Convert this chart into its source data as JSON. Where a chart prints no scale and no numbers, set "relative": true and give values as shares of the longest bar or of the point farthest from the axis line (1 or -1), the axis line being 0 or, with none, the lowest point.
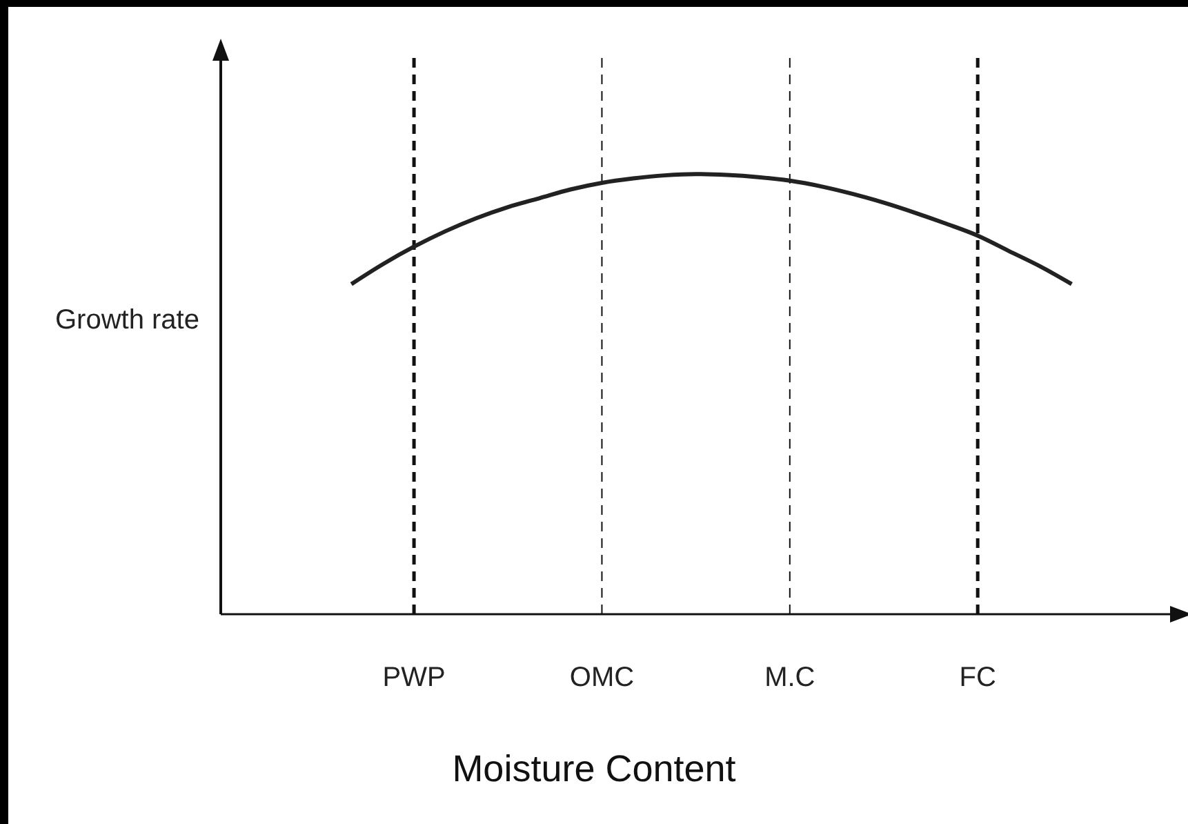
{
  "chart_data": {
    "type": "line",
    "xlabel": "Moisture Content",
    "ylabel": "Growth rate",
    "relative": true,
    "categories": [
      null,
      null,
      "PWP",
      null,
      null,
      null,
      null,
      null,
      "OMC",
      null,
      null,
      null,
      null,
      null,
      "M.C",
      null,
      null,
      null,
      null,
      null,
      "FC",
      null,
      null,
      null
    ],
    "series": [
      {
        "color": "#222222",
        "values": [
          0.75,
          0.795,
          0.835,
          0.87,
          0.9,
          0.925,
          0.945,
          0.965,
          0.98,
          0.99,
          0.997,
          1,
          0.998,
          0.993,
          0.985,
          0.972,
          0.955,
          0.935,
          0.912,
          0.887,
          0.86,
          0.825,
          0.79,
          0.75
        ]
      }
    ],
    "ref_lines": [
      {
        "axis": "x",
        "value": "PWP",
        "line_style": "dashed",
        "color": "#111111"
      },
      {
        "axis": "x",
        "value": "OMC",
        "line_style": "dashed",
        "color": "#111111"
      },
      {
        "axis": "x",
        "value": "M.C",
        "line_style": "dashed",
        "color": "#111111"
      },
      {
        "axis": "x",
        "value": "FC",
        "line_style": "dashed",
        "color": "#111111"
      }
    ],
    "marker": "none",
    "line_style": "solid",
    "grid": false,
    "legend": false
  }
}
